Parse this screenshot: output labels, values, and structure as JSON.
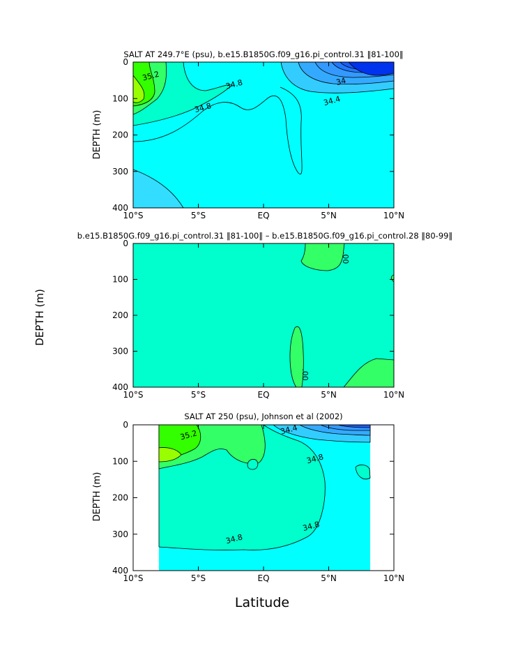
{
  "figure": {
    "shared_ylabel": "DEPTH (m)",
    "shared_xlabel": "Latitude"
  },
  "colors": {
    "frame": "#000000",
    "contour_line": "#000000",
    "missing_region": "#ffffff",
    "salt_scale": [
      "#0033ee",
      "#1a5cff",
      "#3399ff",
      "#33ccff",
      "#33ddff",
      "#00ffff",
      "#00ffcc",
      "#33ff66",
      "#33ff00",
      "#99ff00"
    ],
    "diff_scale": [
      "#00ffcc",
      "#33ff66"
    ]
  },
  "chart_data": [
    {
      "type": "heatmap",
      "title": "SALT AT 249.7°E (psu), b.e15.B1850G.f09_g16.pi_control.31 ‖81-100‖",
      "ylabel": "DEPTH (m)",
      "xlabel": "",
      "x_ticks": [
        "10°S",
        "5°S",
        "EQ",
        "5°N",
        "10°N"
      ],
      "x_tick_values": [
        -10,
        -5,
        0,
        5,
        10
      ],
      "y_ticks": [
        "0",
        "100",
        "200",
        "300",
        "400"
      ],
      "y_tick_values": [
        0,
        100,
        200,
        300,
        400
      ],
      "xlim": [
        -10,
        10
      ],
      "ylim": [
        400,
        0
      ],
      "grid": false,
      "contour_labels": [
        "35.2",
        "34.8",
        "34.8",
        "34",
        "34.4"
      ],
      "annotations": [
        {
          "text": "35.2",
          "x": -8.6,
          "y": 45
        },
        {
          "text": "34.8",
          "x": -4.6,
          "y": 132
        },
        {
          "text": "34.8",
          "x": -2.2,
          "y": 68
        },
        {
          "text": "34",
          "x": 6.0,
          "y": 60
        },
        {
          "text": "34.4",
          "x": 5.3,
          "y": 113
        }
      ]
    },
    {
      "type": "heatmap",
      "title": "b.e15.B1850G.f09_g16.pi_control.31 ‖81-100‖ – b.e15.B1850G.f09_g16.pi_control.28 ‖80-99‖",
      "ylabel": "",
      "xlabel": "",
      "x_ticks": [
        "10°S",
        "5°S",
        "EQ",
        "5°N",
        "10°N"
      ],
      "x_tick_values": [
        -10,
        -5,
        0,
        5,
        10
      ],
      "y_ticks": [
        "0",
        "100",
        "200",
        "300",
        "400"
      ],
      "y_tick_values": [
        0,
        100,
        200,
        300,
        400
      ],
      "xlim": [
        -10,
        10
      ],
      "ylim": [
        400,
        0
      ],
      "grid": false,
      "contour_labels": [
        ".00",
        ".00"
      ],
      "annotations": [
        {
          "text": ".00",
          "x": 6.1,
          "y": 40
        },
        {
          "text": ".00",
          "x": 3.0,
          "y": 365
        }
      ]
    },
    {
      "type": "heatmap",
      "title": "SALT AT 250 (psu), Johnson et al (2002)",
      "ylabel": "DEPTH (m)",
      "xlabel": "Latitude",
      "x_ticks": [
        "10°S",
        "5°S",
        "EQ",
        "5°N",
        "10°N"
      ],
      "x_tick_values": [
        -10,
        -5,
        0,
        5,
        10
      ],
      "y_ticks": [
        "0",
        "100",
        "200",
        "300",
        "400"
      ],
      "y_tick_values": [
        0,
        100,
        200,
        300,
        400
      ],
      "xlim": [
        -10,
        10
      ],
      "ylim": [
        400,
        0
      ],
      "data_extent_x": [
        -8,
        8.2
      ],
      "grid": false,
      "contour_labels": [
        "35.2",
        "34.4",
        "34.8",
        "34.8",
        "34.8"
      ],
      "annotations": [
        {
          "text": "35.2",
          "x": -5.7,
          "y": 35
        },
        {
          "text": "34.4",
          "x": 2.0,
          "y": 20
        },
        {
          "text": "34.8",
          "x": 4.0,
          "y": 100
        },
        {
          "text": "34.8",
          "x": 3.7,
          "y": 285
        },
        {
          "text": "34.8",
          "x": -2.2,
          "y": 320
        }
      ]
    }
  ]
}
